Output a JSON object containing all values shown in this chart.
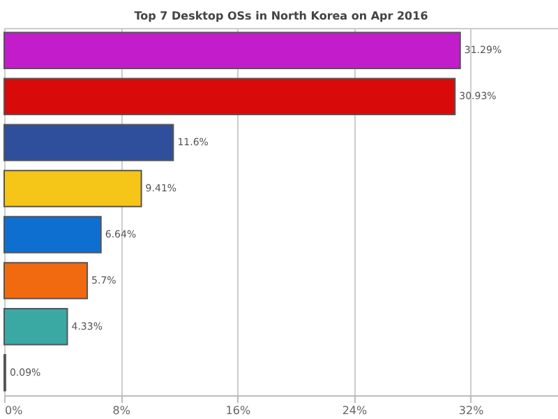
{
  "chart_data": {
    "type": "bar",
    "orientation": "horizontal",
    "subtitle": "Top 7 Desktop OSs in North Korea on Apr 2016",
    "categories": [
      null,
      null,
      null,
      null,
      null,
      null,
      null,
      null
    ],
    "values": [
      31.29,
      30.93,
      11.6,
      9.41,
      6.64,
      5.7,
      4.33,
      0.09
    ],
    "colors": [
      "#c21ccb",
      "#d90a0a",
      "#2f4f9c",
      "#f5c518",
      "#0e6fd1",
      "#f26a0f",
      "#3aa9a3",
      "#222222"
    ],
    "value_labels": [
      "31.29%",
      "30.93%",
      "11.6%",
      "9.41%",
      "6.64%",
      "5.7%",
      "4.33%",
      "0.09%"
    ],
    "xlim": [
      0,
      38
    ],
    "xticks": [
      {
        "value": 0,
        "label": "0%"
      },
      {
        "value": 8,
        "label": "8%"
      },
      {
        "value": 16,
        "label": "16%"
      },
      {
        "value": 24,
        "label": "24%"
      },
      {
        "value": 32,
        "label": "32%"
      }
    ],
    "grid": "x",
    "legend": false
  }
}
